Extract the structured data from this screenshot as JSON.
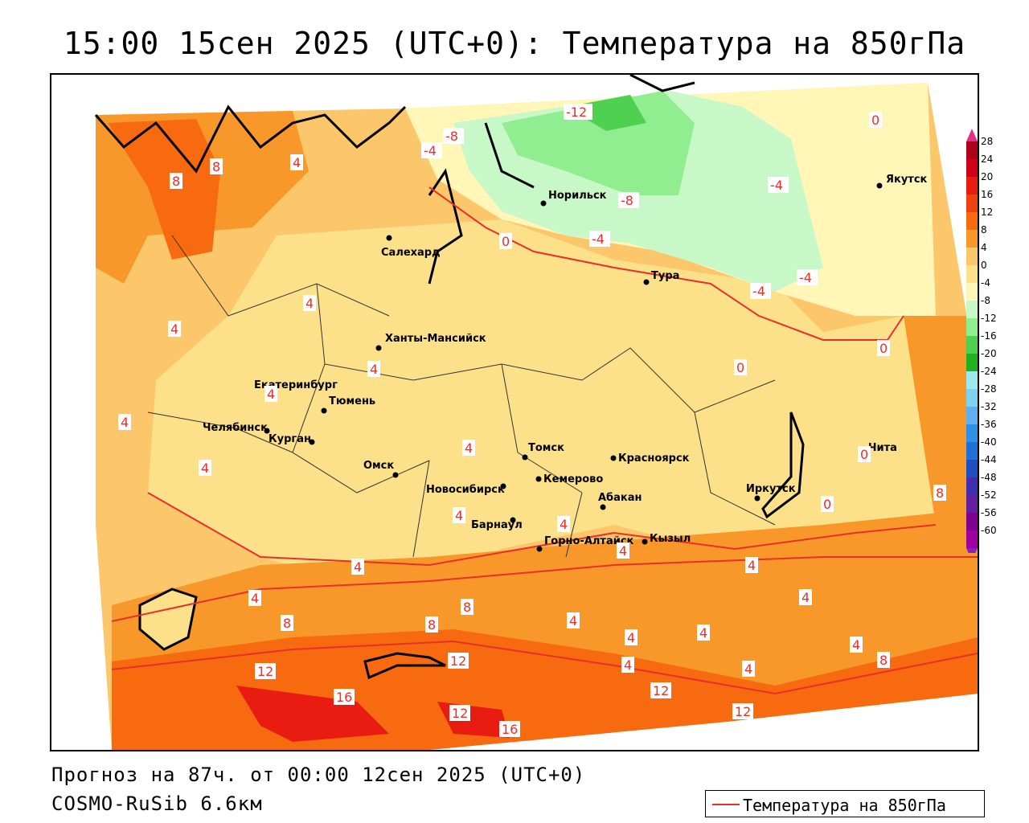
{
  "title": "15:00 15сен 2025 (UTC+0): Температура на 850гПа",
  "forecast_info": "Прогноз на 87ч. от 00:00 12сен 2025 (UTC+0)",
  "model_info": "COSMO-RuSib 6.6км",
  "legend": {
    "label": "Температура на 850гПа",
    "line_color": "#e8302a"
  },
  "colorbar": {
    "ticks": [
      "28",
      "24",
      "20",
      "16",
      "12",
      "8",
      "4",
      "0",
      "-4",
      "-8",
      "-12",
      "-16",
      "-20",
      "-24",
      "-28",
      "-32",
      "-36",
      "-40",
      "-44",
      "-48",
      "-52",
      "-56",
      "-60"
    ],
    "colors": [
      "#b0001a",
      "#d0001a",
      "#e81c10",
      "#f04010",
      "#f86a10",
      "#f8982a",
      "#fcc66a",
      "#fde08a",
      "#fff6b8",
      "#c8f8c8",
      "#90ee90",
      "#50d050",
      "#20b020",
      "#a0e8f0",
      "#80d0f0",
      "#60b0f0",
      "#3090e8",
      "#2070d8",
      "#2050c0",
      "#4030b0",
      "#6020a0",
      "#800090",
      "#a000a0"
    ],
    "top_arrow_color": "#e0308a",
    "bottom_arrow_color": "#8a20c0"
  },
  "cities": [
    {
      "name": "Якутск"
    },
    {
      "name": "Норильск"
    },
    {
      "name": "Салехард"
    },
    {
      "name": "Тура"
    },
    {
      "name": "Ханты-Мансийск"
    },
    {
      "name": "Екатеринбург"
    },
    {
      "name": "Тюмень"
    },
    {
      "name": "Челябинск"
    },
    {
      "name": "Курган"
    },
    {
      "name": "Омск"
    },
    {
      "name": "Новосибирск"
    },
    {
      "name": "Томск"
    },
    {
      "name": "Кемерово"
    },
    {
      "name": "Красноярск"
    },
    {
      "name": "Абакан"
    },
    {
      "name": "Барнаул"
    },
    {
      "name": "Горно-Алтайск"
    },
    {
      "name": "Кызыл"
    },
    {
      "name": "Иркутск"
    },
    {
      "name": "Чита"
    }
  ],
  "contour_labels": [
    "-12",
    "-8",
    "-8",
    "-4",
    "-4",
    "-4",
    "-4",
    "-4",
    "0",
    "0",
    "0",
    "0",
    "0",
    "0",
    "4",
    "4",
    "4",
    "4",
    "4",
    "4",
    "4",
    "4",
    "4",
    "4",
    "4",
    "4",
    "4",
    "4",
    "4",
    "4",
    "4",
    "4",
    "4",
    "4",
    "4",
    "8",
    "8",
    "8",
    "8",
    "8",
    "8",
    "8",
    "12",
    "12",
    "12",
    "12",
    "12",
    "16",
    "16"
  ]
}
